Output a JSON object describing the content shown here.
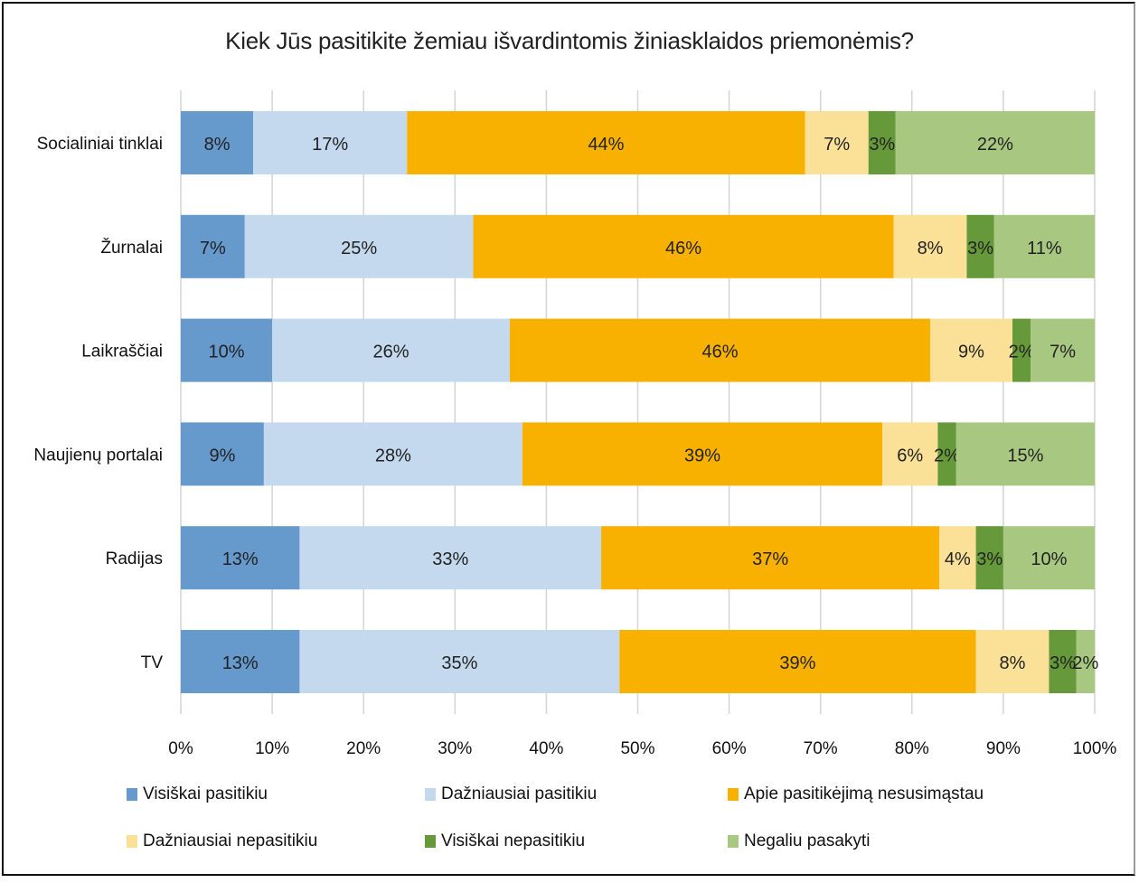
{
  "chart_data": {
    "type": "bar",
    "orientation": "horizontal",
    "stacked": "percent",
    "title": "Kiek Jūs pasitikite žemiau išvardintomis žiniasklaidos priemonėmis?",
    "xlabel": "",
    "ylabel": "",
    "xlim": [
      0,
      100
    ],
    "x_ticks": [
      "0%",
      "10%",
      "20%",
      "30%",
      "40%",
      "50%",
      "60%",
      "70%",
      "80%",
      "90%",
      "100%"
    ],
    "grid": true,
    "legend_position": "bottom",
    "categories": [
      "Socialiniai tinklai",
      "Žurnalai",
      "Laikraščiai",
      "Naujienų portalai",
      "Radijas",
      "TV"
    ],
    "series": [
      {
        "name": "Visiškai pasitikiu",
        "color": "#6699cc",
        "values": [
          8,
          7,
          10,
          9,
          13,
          13
        ]
      },
      {
        "name": "Dažniausiai pasitikiu",
        "color": "#c4d9ee",
        "values": [
          17,
          25,
          26,
          28,
          33,
          35
        ]
      },
      {
        "name": "Apie pasitikėjimą nesusimąstau",
        "color": "#f8b100",
        "values": [
          44,
          46,
          46,
          39,
          37,
          39
        ]
      },
      {
        "name": "Dažniausiai nepasitikiu",
        "color": "#fbe198",
        "values": [
          7,
          8,
          9,
          6,
          4,
          8
        ]
      },
      {
        "name": "Visiškai nepasitikiu",
        "color": "#66993a",
        "values": [
          3,
          3,
          2,
          2,
          3,
          3
        ]
      },
      {
        "name": "Negaliu pasakyti",
        "color": "#a8c882",
        "values": [
          22,
          11,
          7,
          15,
          10,
          2
        ]
      }
    ],
    "value_suffix": "%"
  }
}
